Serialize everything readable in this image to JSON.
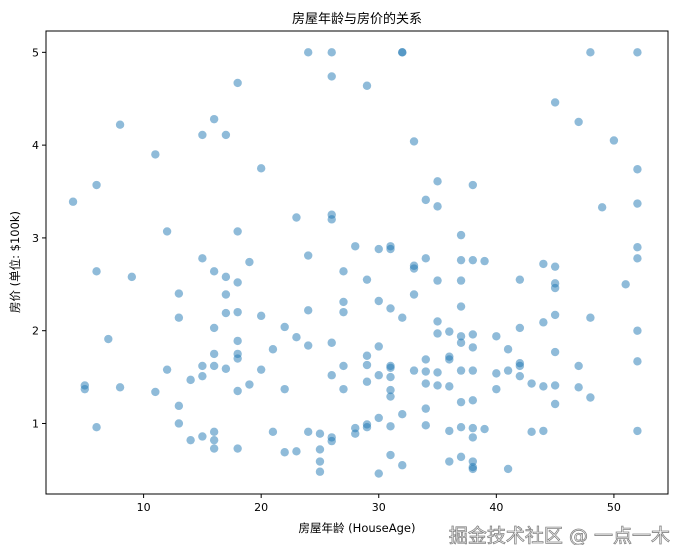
{
  "chart_data": {
    "type": "scatter",
    "title": "房屋年龄与房价的关系",
    "xlabel": "房屋年龄 (HouseAge)",
    "ylabel": "房价 (单位: $100k)",
    "xlim": [
      1.7,
      54.6
    ],
    "ylim": [
      0.24,
      5.23
    ],
    "xticks": [
      10,
      20,
      30,
      40,
      50
    ],
    "yticks": [
      1,
      2,
      3,
      4,
      5
    ],
    "grid": false,
    "marker_color": "#1f77b4",
    "marker_alpha": 0.5,
    "points": [
      [
        4,
        3.39
      ],
      [
        5,
        1.41
      ],
      [
        5,
        1.37
      ],
      [
        6,
        3.57
      ],
      [
        6,
        2.64
      ],
      [
        6,
        0.96
      ],
      [
        7,
        1.91
      ],
      [
        8,
        4.22
      ],
      [
        8,
        1.39
      ],
      [
        9,
        2.58
      ],
      [
        11,
        3.9
      ],
      [
        11,
        1.34
      ],
      [
        12,
        3.07
      ],
      [
        12,
        1.58
      ],
      [
        13,
        2.4
      ],
      [
        13,
        2.14
      ],
      [
        13,
        1.19
      ],
      [
        13,
        1.0
      ],
      [
        14,
        1.47
      ],
      [
        14,
        0.82
      ],
      [
        15,
        4.11
      ],
      [
        15,
        2.78
      ],
      [
        15,
        1.62
      ],
      [
        15,
        1.51
      ],
      [
        15,
        0.86
      ],
      [
        16,
        4.28
      ],
      [
        16,
        2.64
      ],
      [
        16,
        2.03
      ],
      [
        16,
        1.75
      ],
      [
        16,
        1.62
      ],
      [
        16,
        0.91
      ],
      [
        16,
        0.82
      ],
      [
        16,
        0.73
      ],
      [
        17,
        4.11
      ],
      [
        17,
        2.58
      ],
      [
        17,
        2.39
      ],
      [
        17,
        2.19
      ],
      [
        17,
        1.59
      ],
      [
        18,
        4.67
      ],
      [
        18,
        3.07
      ],
      [
        18,
        2.52
      ],
      [
        18,
        2.2
      ],
      [
        18,
        1.89
      ],
      [
        18,
        1.75
      ],
      [
        18,
        1.7
      ],
      [
        18,
        1.35
      ],
      [
        18,
        0.73
      ],
      [
        19,
        2.74
      ],
      [
        19,
        1.42
      ],
      [
        20,
        3.75
      ],
      [
        20,
        2.16
      ],
      [
        20,
        1.58
      ],
      [
        21,
        1.8
      ],
      [
        21,
        0.91
      ],
      [
        22,
        2.04
      ],
      [
        22,
        1.37
      ],
      [
        22,
        0.69
      ],
      [
        23,
        3.22
      ],
      [
        23,
        1.93
      ],
      [
        23,
        0.7
      ],
      [
        24,
        5.0
      ],
      [
        24,
        2.81
      ],
      [
        24,
        2.22
      ],
      [
        24,
        1.84
      ],
      [
        24,
        0.91
      ],
      [
        25,
        0.89
      ],
      [
        25,
        0.72
      ],
      [
        25,
        0.59
      ],
      [
        25,
        0.48
      ],
      [
        26,
        5.0
      ],
      [
        26,
        4.74
      ],
      [
        26,
        3.25
      ],
      [
        26,
        3.2
      ],
      [
        26,
        1.87
      ],
      [
        26,
        1.52
      ],
      [
        26,
        0.85
      ],
      [
        26,
        0.81
      ],
      [
        27,
        2.64
      ],
      [
        27,
        2.31
      ],
      [
        27,
        2.2
      ],
      [
        27,
        1.62
      ],
      [
        27,
        1.37
      ],
      [
        28,
        2.91
      ],
      [
        28,
        0.95
      ],
      [
        28,
        0.89
      ],
      [
        29,
        4.64
      ],
      [
        29,
        2.55
      ],
      [
        29,
        1.73
      ],
      [
        29,
        1.63
      ],
      [
        29,
        1.45
      ],
      [
        29,
        0.99
      ],
      [
        29,
        0.96
      ],
      [
        30,
        2.88
      ],
      [
        30,
        2.32
      ],
      [
        30,
        1.83
      ],
      [
        30,
        1.52
      ],
      [
        30,
        1.06
      ],
      [
        30,
        0.46
      ],
      [
        31,
        2.91
      ],
      [
        31,
        2.88
      ],
      [
        31,
        2.24
      ],
      [
        31,
        1.62
      ],
      [
        31,
        1.6
      ],
      [
        31,
        1.5
      ],
      [
        31,
        1.36
      ],
      [
        31,
        1.29
      ],
      [
        31,
        0.97
      ],
      [
        31,
        0.66
      ],
      [
        32,
        5.0
      ],
      [
        32,
        5.0
      ],
      [
        32,
        2.14
      ],
      [
        32,
        1.1
      ],
      [
        32,
        0.55
      ],
      [
        33,
        4.04
      ],
      [
        33,
        2.7
      ],
      [
        33,
        2.67
      ],
      [
        33,
        2.39
      ],
      [
        33,
        1.57
      ],
      [
        34,
        3.41
      ],
      [
        34,
        2.78
      ],
      [
        34,
        1.69
      ],
      [
        34,
        1.56
      ],
      [
        34,
        1.43
      ],
      [
        34,
        1.16
      ],
      [
        34,
        0.98
      ],
      [
        35,
        3.61
      ],
      [
        35,
        3.34
      ],
      [
        35,
        2.54
      ],
      [
        35,
        2.1
      ],
      [
        35,
        1.97
      ],
      [
        35,
        1.55
      ],
      [
        35,
        1.41
      ],
      [
        36,
        1.99
      ],
      [
        36,
        1.72
      ],
      [
        36,
        1.69
      ],
      [
        36,
        1.4
      ],
      [
        36,
        0.92
      ],
      [
        36,
        0.59
      ],
      [
        37,
        3.03
      ],
      [
        37,
        2.76
      ],
      [
        37,
        2.54
      ],
      [
        37,
        2.26
      ],
      [
        37,
        1.94
      ],
      [
        37,
        1.87
      ],
      [
        37,
        1.57
      ],
      [
        37,
        1.23
      ],
      [
        37,
        0.96
      ],
      [
        37,
        0.64
      ],
      [
        38,
        3.57
      ],
      [
        38,
        2.76
      ],
      [
        38,
        1.96
      ],
      [
        38,
        1.82
      ],
      [
        38,
        1.57
      ],
      [
        38,
        1.25
      ],
      [
        38,
        0.95
      ],
      [
        38,
        0.85
      ],
      [
        38,
        0.59
      ],
      [
        38,
        0.53
      ],
      [
        38,
        0.51
      ],
      [
        39,
        2.75
      ],
      [
        39,
        0.94
      ],
      [
        40,
        1.94
      ],
      [
        40,
        1.54
      ],
      [
        40,
        1.37
      ],
      [
        41,
        1.8
      ],
      [
        41,
        1.57
      ],
      [
        41,
        0.51
      ],
      [
        42,
        2.55
      ],
      [
        42,
        2.03
      ],
      [
        42,
        1.65
      ],
      [
        42,
        1.62
      ],
      [
        42,
        1.51
      ],
      [
        43,
        1.43
      ],
      [
        43,
        0.91
      ],
      [
        44,
        2.72
      ],
      [
        44,
        2.09
      ],
      [
        44,
        1.4
      ],
      [
        44,
        0.92
      ],
      [
        45,
        4.46
      ],
      [
        45,
        2.69
      ],
      [
        45,
        2.51
      ],
      [
        45,
        2.46
      ],
      [
        45,
        2.17
      ],
      [
        45,
        1.77
      ],
      [
        45,
        1.41
      ],
      [
        45,
        1.21
      ],
      [
        47,
        4.25
      ],
      [
        47,
        1.62
      ],
      [
        47,
        1.39
      ],
      [
        48,
        5.0
      ],
      [
        48,
        2.14
      ],
      [
        48,
        1.28
      ],
      [
        49,
        3.33
      ],
      [
        50,
        4.05
      ],
      [
        51,
        2.5
      ],
      [
        52,
        5.0
      ],
      [
        52,
        3.74
      ],
      [
        52,
        3.37
      ],
      [
        52,
        2.9
      ],
      [
        52,
        2.78
      ],
      [
        52,
        2.0
      ],
      [
        52,
        1.67
      ],
      [
        52,
        0.92
      ]
    ]
  },
  "watermark": "掘金技术社区 @ 一点一木"
}
